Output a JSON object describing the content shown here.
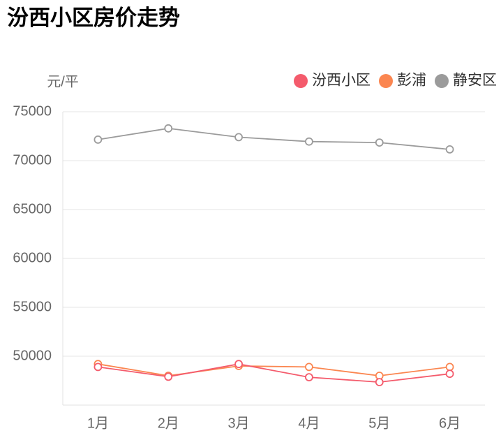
{
  "chart_data": {
    "type": "line",
    "title": "汾西小区房价走势",
    "y_label": "元/平",
    "categories": [
      "1月",
      "2月",
      "3月",
      "4月",
      "5月",
      "6月"
    ],
    "series": [
      {
        "name": "汾西小区",
        "color": "#f45b6c",
        "values": [
          48900,
          47900,
          49200,
          47850,
          47350,
          48200
        ]
      },
      {
        "name": "彭浦",
        "color": "#fb8650",
        "values": [
          49200,
          48000,
          49000,
          48900,
          48000,
          48900
        ]
      },
      {
        "name": "静安区",
        "color": "#9b9b9b",
        "values": [
          72150,
          73300,
          72400,
          71950,
          71850,
          71150
        ]
      }
    ],
    "ylim": [
      45000,
      75000
    ],
    "yticks": [
      50000,
      55000,
      60000,
      65000,
      70000,
      75000
    ],
    "grid": true,
    "legend": "top-right"
  }
}
